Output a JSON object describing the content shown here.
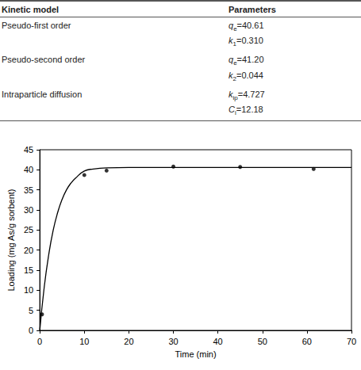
{
  "table": {
    "header": [
      "Kinetic model",
      "Parameters"
    ],
    "rows": [
      {
        "model": "Pseudo-first order",
        "parameters": [
          {
            "symbol": "q",
            "sub": "e",
            "sign": "=",
            "value": "40.61"
          },
          {
            "symbol": "k",
            "sub": "1",
            "sign": "=",
            "value": "0.310"
          }
        ]
      },
      {
        "model": "Pseudo-second order",
        "parameters": [
          {
            "symbol": "q",
            "sub": "e",
            "sign": "=",
            "value": "41.20"
          },
          {
            "symbol": "k",
            "sub": "2",
            "sign": "=",
            "value": "0.044"
          }
        ]
      },
      {
        "model": "Intraparticle diffusion",
        "parameters": [
          {
            "symbol": "k",
            "sub": "ip",
            "sign": "=",
            "value": "4.727"
          },
          {
            "symbol": "C",
            "sub": "i",
            "sign": "=",
            "value": "12.18"
          }
        ]
      }
    ]
  },
  "chart_data": {
    "type": "scatter",
    "x_label": "Time (min)",
    "y_label": "Loading (mg As/g sorbent)",
    "xlim": [
      0,
      70
    ],
    "xticks": [
      0,
      10,
      20,
      30,
      40,
      50,
      60,
      70
    ],
    "ylim": [
      0,
      45
    ],
    "yticks": [
      0,
      5,
      10,
      15,
      20,
      25,
      30,
      35,
      40,
      45
    ],
    "grid": false,
    "series": [
      {
        "type": "scatter",
        "marker": "circle",
        "color": "#000000",
        "x": [
          0.5,
          10,
          15,
          30,
          45,
          61.5
        ],
        "values": [
          4,
          38.7,
          39.8,
          40.8,
          40.7,
          40.2
        ]
      },
      {
        "type": "line",
        "line_style": "solid",
        "color": "#000000",
        "x": [
          0,
          1,
          2,
          3,
          4,
          5,
          6,
          7,
          8,
          10,
          12,
          15,
          20,
          30,
          40,
          50,
          60,
          70
        ],
        "values": [
          0,
          10.8,
          18.8,
          24.9,
          29.3,
          32.6,
          35,
          36.7,
          37.9,
          39.7,
          40.2,
          40.5,
          40.6,
          40.6,
          40.6,
          40.6,
          40.6,
          40.6
        ]
      }
    ]
  }
}
